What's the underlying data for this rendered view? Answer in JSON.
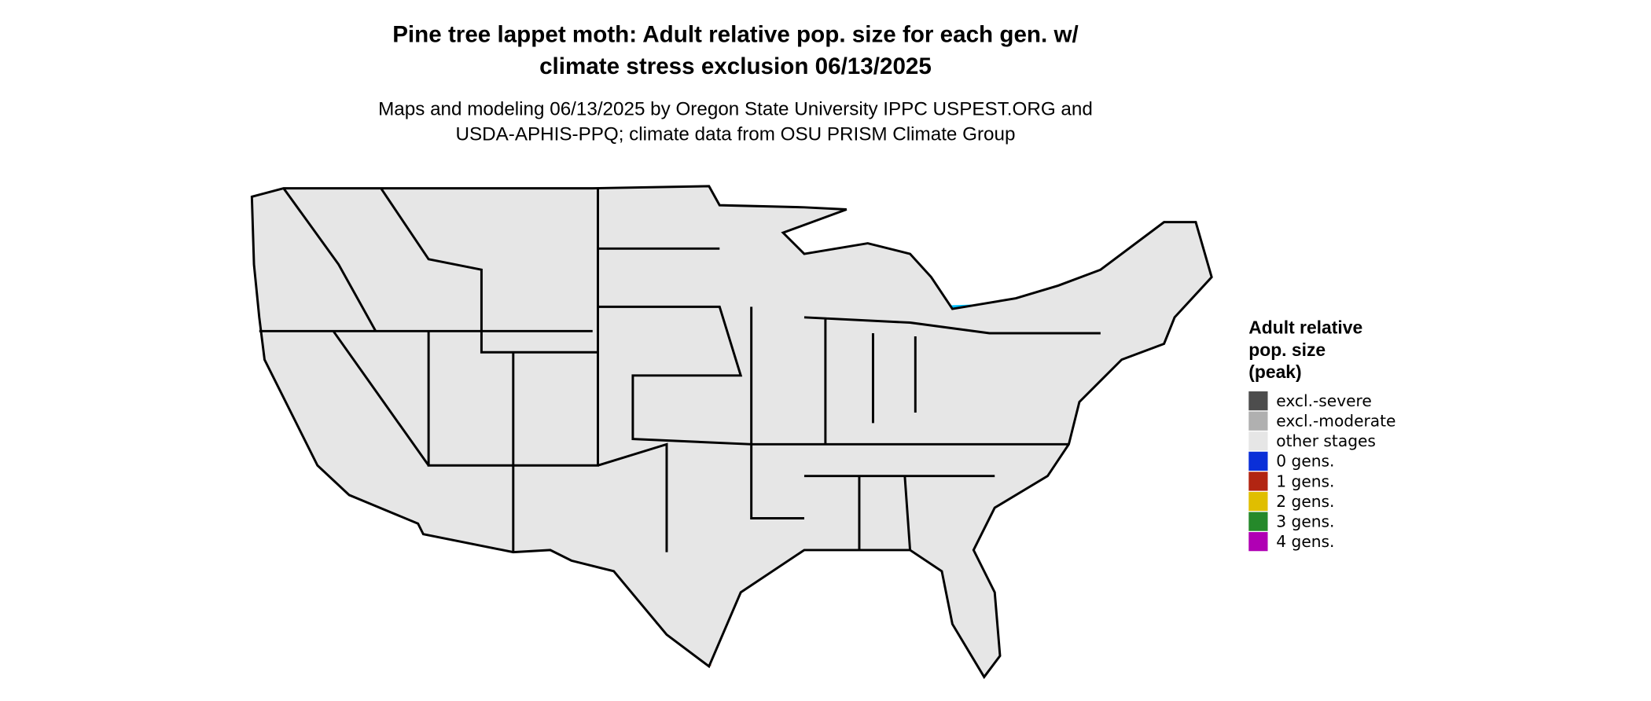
{
  "header": {
    "title_lines": [
      "Pine tree lappet moth: Adult relative pop. size for each gen. w/",
      "climate stress exclusion 06/13/2025"
    ],
    "subtitle_lines": [
      "Maps and modeling 06/13/2025 by Oregon State University IPPC USPEST.ORG and",
      "USDA-APHIS-PPQ; climate data from OSU PRISM Climate Group"
    ]
  },
  "legend": {
    "title_lines": [
      "Adult relative",
      "pop. size",
      "(peak)"
    ],
    "items": [
      {
        "label": "excl.-severe",
        "color": "#4d4d4d"
      },
      {
        "label": "excl.-moderate",
        "color": "#b0b0b0"
      },
      {
        "label": "other stages",
        "color": "#e6e6e6"
      },
      {
        "label": "0 gens.",
        "color": "#0a2fd8"
      },
      {
        "label": "1 gens.",
        "color": "#b22512"
      },
      {
        "label": "2 gens.",
        "color": "#e0be00"
      },
      {
        "label": "3 gens.",
        "color": "#25892a"
      },
      {
        "label": "4 gens.",
        "color": "#b000b4"
      }
    ]
  }
}
